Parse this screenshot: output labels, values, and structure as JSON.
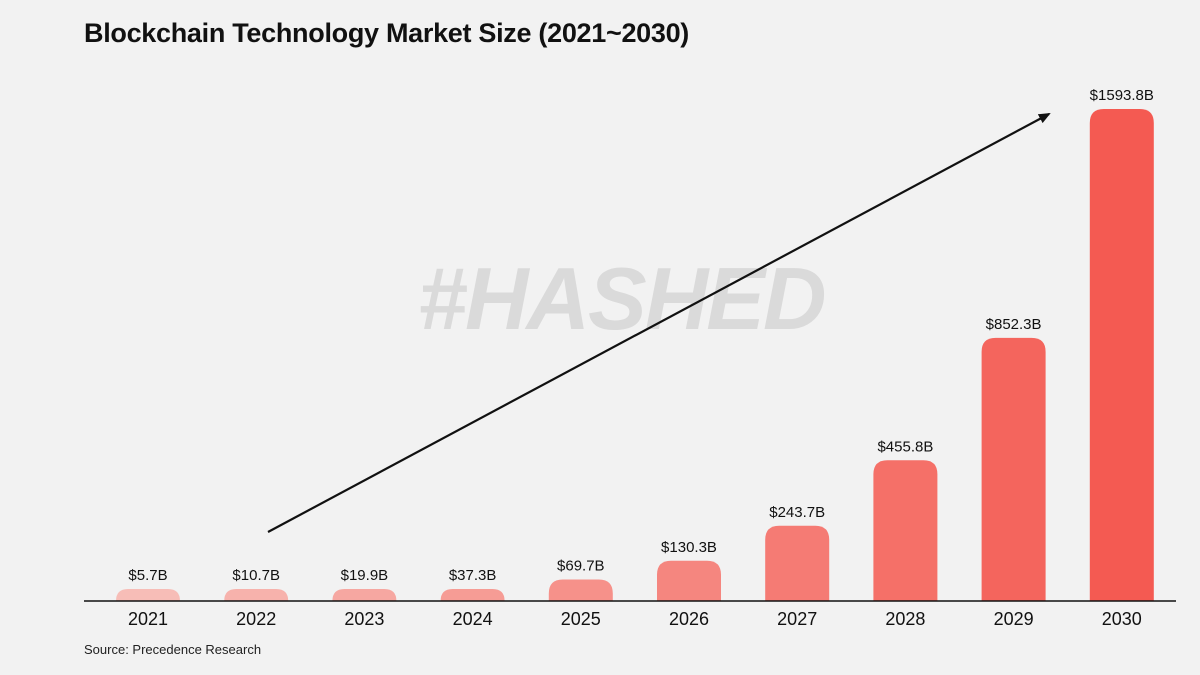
{
  "chart_data": {
    "type": "bar",
    "title": "Blockchain Technology Market Size (2021~2030)",
    "xlabel": "",
    "ylabel": "",
    "categories": [
      "2021",
      "2022",
      "2023",
      "2024",
      "2025",
      "2026",
      "2027",
      "2028",
      "2029",
      "2030"
    ],
    "values": [
      5.7,
      10.7,
      19.9,
      37.3,
      69.7,
      130.3,
      243.7,
      455.8,
      852.3,
      1593.8
    ],
    "value_labels": [
      "$5.7B",
      "$10.7B",
      "$19.9B",
      "$37.3B",
      "$69.7B",
      "$130.3B",
      "$243.7B",
      "$455.8B",
      "$852.3B",
      "$1593.8B"
    ],
    "ylim": [
      0,
      1593.8
    ],
    "grid": false,
    "legend": "none",
    "annotation": "trend arrow (upward)",
    "source": "Source: Precedence Research",
    "watermark": "#HASHED",
    "colors": {
      "bar_light": "#f7bdb7",
      "bar_dark": "#f45a52",
      "axis": "#111111",
      "background": "#f2f2f2"
    }
  }
}
